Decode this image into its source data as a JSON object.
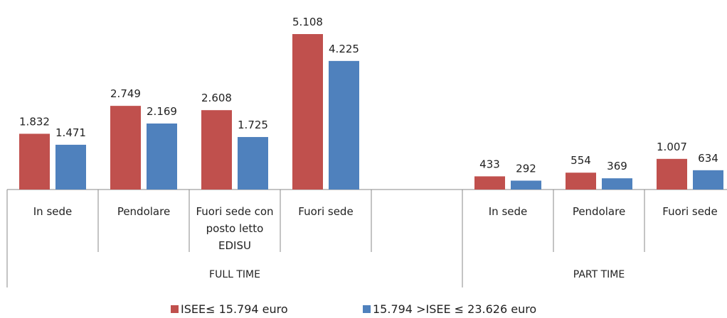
{
  "chart_data": {
    "type": "bar",
    "groups": [
      {
        "name": "FULL TIME",
        "categories": [
          "In sede",
          "Pendolare",
          "Fuori sede con posto letto EDISU",
          "Fuori sede",
          null
        ]
      },
      {
        "name": "PART TIME",
        "categories": [
          "In sede",
          "Pendolare",
          "Fuori sede"
        ]
      }
    ],
    "series": [
      {
        "name": "ISEE≤ 15.794 euro",
        "color": "#c0504d",
        "values": [
          1832,
          2749,
          2608,
          5108,
          null,
          433,
          554,
          1007
        ],
        "value_labels": [
          "1.832",
          "2.749",
          "2.608",
          "5.108",
          null,
          "433",
          "554",
          "1.007"
        ]
      },
      {
        "name": "15.794 >ISEE ≤ 23.626 euro",
        "color": "#4f81bd",
        "values": [
          1471,
          2169,
          1725,
          4225,
          null,
          292,
          369,
          634
        ],
        "value_labels": [
          "1.471",
          "2.169",
          "1.725",
          "4.225",
          null,
          "292",
          "369",
          "634"
        ]
      }
    ]
  }
}
